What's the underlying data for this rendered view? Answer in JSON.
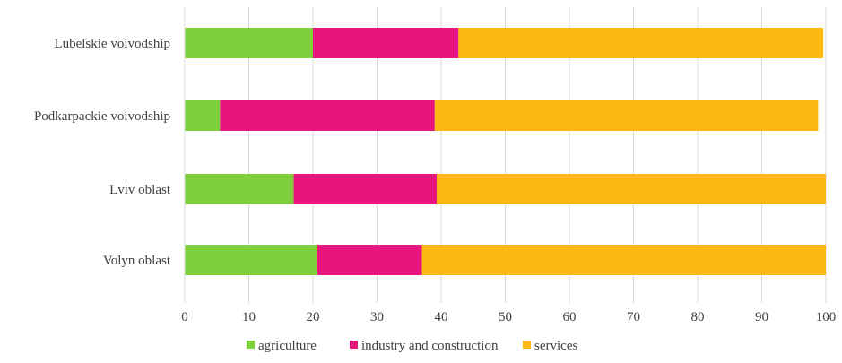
{
  "chart_data": {
    "type": "bar",
    "orientation": "horizontal",
    "stacked": true,
    "title": "",
    "xlabel": "",
    "ylabel": "",
    "categories": [
      "Lubelskie voivodship",
      "Podkarpackie voivodship",
      "Lviv oblast",
      "Volyn oblast"
    ],
    "series": [
      {
        "name": "agriculture",
        "color": "#7ed13b",
        "values": [
          20.0,
          5.5,
          17.0,
          20.7
        ]
      },
      {
        "name": "industry and construction",
        "color": "#e8157f",
        "values": [
          22.7,
          33.5,
          22.3,
          16.3
        ]
      },
      {
        "name": "services",
        "color": "#fdb813",
        "values": [
          56.9,
          59.8,
          60.7,
          63.0
        ]
      }
    ],
    "xlim": [
      0,
      100
    ],
    "xticks": [
      "0",
      "10",
      "20",
      "30",
      "40",
      "50",
      "60",
      "70",
      "80",
      "90",
      "100"
    ],
    "grid": "vertical",
    "legend_position": "bottom"
  }
}
